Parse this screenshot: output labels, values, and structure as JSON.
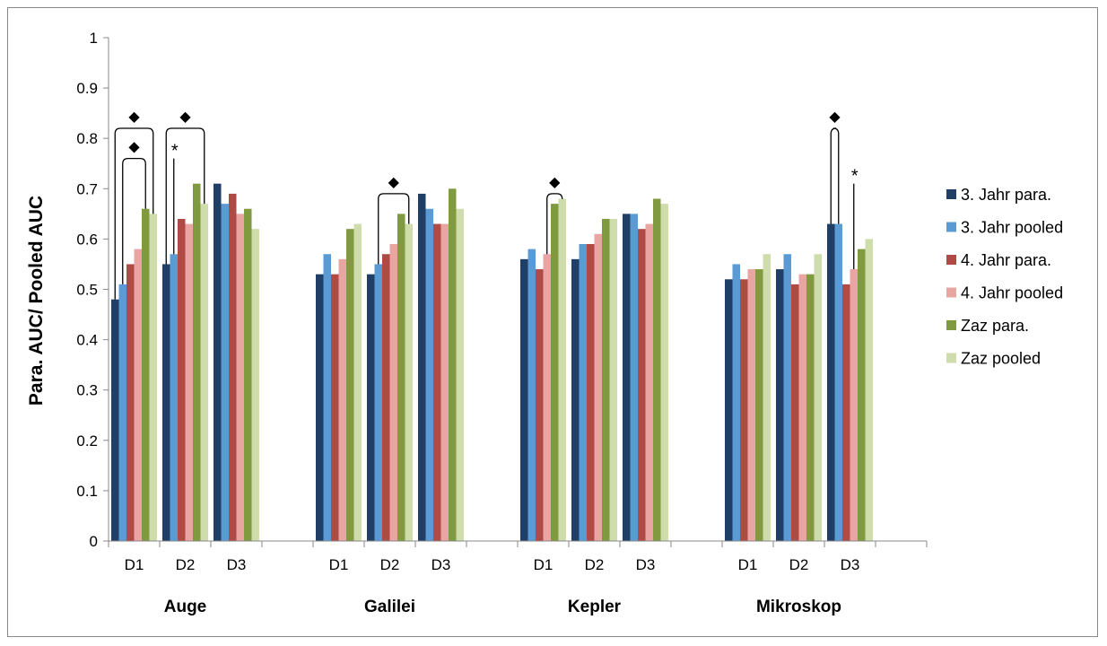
{
  "chart_data": {
    "type": "bar",
    "ylabel": "Para. AUC/ Pooled AUC",
    "xlabel": "",
    "ylim": [
      0,
      1
    ],
    "yticks": [
      "0",
      "0.1",
      "0.2",
      "0.3",
      "0.4",
      "0.5",
      "0.6",
      "0.7",
      "0.8",
      "0.9",
      "1"
    ],
    "groups": [
      "Auge",
      "Galilei",
      "Kepler",
      "Mikroskop"
    ],
    "subcategories": [
      "D1",
      "D2",
      "D3"
    ],
    "series": [
      {
        "name": "3. Jahr para.",
        "color": "#1f3f66",
        "values": [
          [
            0.48,
            0.55,
            0.71
          ],
          [
            0.53,
            0.53,
            0.69
          ],
          [
            0.56,
            0.56,
            0.65
          ],
          [
            0.52,
            0.54,
            0.63
          ]
        ]
      },
      {
        "name": "3. Jahr pooled",
        "color": "#5b9bd5",
        "values": [
          [
            0.51,
            0.57,
            0.67
          ],
          [
            0.57,
            0.55,
            0.66
          ],
          [
            0.58,
            0.59,
            0.65
          ],
          [
            0.55,
            0.57,
            0.63
          ]
        ]
      },
      {
        "name": "4. Jahr para.",
        "color": "#b04a45",
        "values": [
          [
            0.55,
            0.64,
            0.69
          ],
          [
            0.53,
            0.57,
            0.63
          ],
          [
            0.54,
            0.59,
            0.62
          ],
          [
            0.52,
            0.51,
            0.51
          ]
        ]
      },
      {
        "name": "4. Jahr pooled",
        "color": "#e9a5a2",
        "values": [
          [
            0.58,
            0.63,
            0.65
          ],
          [
            0.56,
            0.59,
            0.63
          ],
          [
            0.57,
            0.61,
            0.63
          ],
          [
            0.54,
            0.53,
            0.54
          ]
        ]
      },
      {
        "name": "Zaz para.",
        "color": "#7f9a3f",
        "values": [
          [
            0.66,
            0.71,
            0.66
          ],
          [
            0.62,
            0.65,
            0.7
          ],
          [
            0.67,
            0.64,
            0.68
          ],
          [
            0.54,
            0.53,
            0.58
          ]
        ]
      },
      {
        "name": "Zaz pooled",
        "color": "#cfdcab",
        "values": [
          [
            0.65,
            0.67,
            0.62
          ],
          [
            0.63,
            0.63,
            0.66
          ],
          [
            0.68,
            0.64,
            0.67
          ],
          [
            0.57,
            0.57,
            0.6
          ]
        ]
      }
    ],
    "annotations": {
      "diamond_symbol": "◆",
      "star_symbol": "*",
      "brackets": [
        {
          "group": 0,
          "sub": 0,
          "from_series": 0,
          "to_series": 5,
          "top": 0.82
        },
        {
          "group": 0,
          "sub": 0,
          "from_series": 1,
          "to_series": 4,
          "top": 0.76
        },
        {
          "group": 0,
          "sub": 1,
          "from_series": 0,
          "to_series": 5,
          "top": 0.82
        },
        {
          "group": 1,
          "sub": 1,
          "from_series": 1,
          "to_series": 5,
          "top": 0.69
        },
        {
          "group": 2,
          "sub": 0,
          "from_series": 3,
          "to_series": 5,
          "top": 0.69
        },
        {
          "group": 3,
          "sub": 2,
          "from_series": 0,
          "to_series": 1,
          "top": 0.82
        }
      ],
      "stars": [
        {
          "group": 0,
          "sub": 1,
          "series": 1,
          "top": 0.76
        },
        {
          "group": 3,
          "sub": 2,
          "series": 3,
          "top": 0.71
        }
      ]
    },
    "grid": false,
    "legend": "right"
  }
}
